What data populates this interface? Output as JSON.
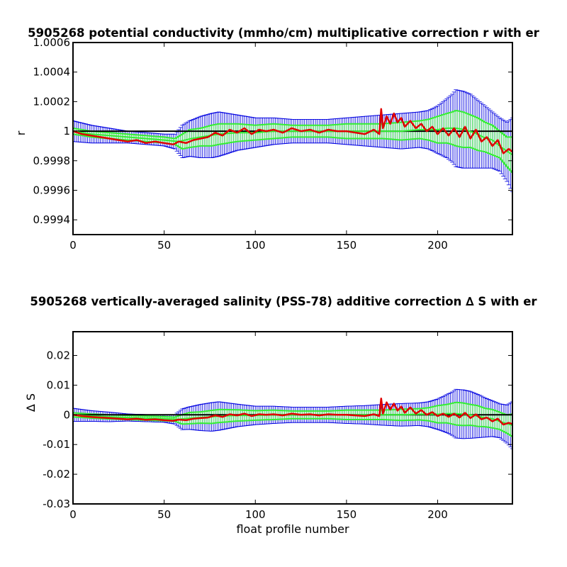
{
  "chart_data": [
    {
      "type": "line",
      "title": "5905268 potential conductivity (mmho/cm) multiplicative correction r with er",
      "xlabel": "",
      "ylabel": "r",
      "xlim": [
        0,
        241
      ],
      "ylim": [
        0.9993,
        1.0006
      ],
      "x_ticks": [
        0,
        50,
        100,
        150,
        200
      ],
      "x_tick_labels": [
        "0",
        "50",
        "100",
        "150",
        "200"
      ],
      "y_ticks": [
        0.9994,
        0.9996,
        0.9998,
        1.0,
        1.0002,
        1.0004,
        1.0006
      ],
      "y_tick_labels": [
        "0.9994",
        "0.9996",
        "0.9998",
        "1",
        "1.0002",
        "1.0004",
        "1.0006"
      ],
      "grid": false,
      "reference_line": 1.0,
      "series": [
        {
          "role": "float-correction",
          "color": "#e00000",
          "x": [
            0,
            5,
            10,
            15,
            20,
            25,
            30,
            35,
            40,
            45,
            50,
            55,
            58,
            62,
            66,
            70,
            74,
            78,
            82,
            86,
            90,
            94,
            98,
            102,
            106,
            110,
            115,
            120,
            125,
            130,
            135,
            140,
            145,
            150,
            155,
            160,
            165,
            168,
            169,
            170,
            172,
            174,
            176,
            178,
            180,
            182,
            185,
            188,
            191,
            194,
            197,
            200,
            203,
            206,
            209,
            212,
            215,
            218,
            221,
            224,
            227,
            230,
            233,
            236,
            239,
            241
          ],
          "values": [
            1.0,
            0.99998,
            0.99997,
            0.99996,
            0.99995,
            0.99994,
            0.99993,
            0.99994,
            0.99992,
            0.99993,
            0.99992,
            0.99991,
            0.99993,
            0.99992,
            0.99994,
            0.99995,
            0.99996,
            0.99999,
            0.99997,
            1.00001,
            0.99999,
            1.00002,
            0.99998,
            1.00001,
            1.0,
            1.00001,
            0.99999,
            1.00002,
            1.0,
            1.00001,
            0.99999,
            1.00001,
            1.0,
            1.0,
            0.99999,
            0.99998,
            1.00001,
            0.99998,
            1.00015,
            1.00002,
            1.0001,
            1.00005,
            1.00012,
            1.00006,
            1.00009,
            1.00003,
            1.00007,
            1.00002,
            1.00005,
            1.0,
            1.00003,
            0.99998,
            1.00002,
            0.99997,
            1.00002,
            0.99996,
            1.00003,
            0.99995,
            1.00001,
            0.99993,
            0.99996,
            0.9999,
            0.99994,
            0.99985,
            0.99988,
            0.99986
          ]
        },
        {
          "role": "mapped-estimate",
          "color": "#33ee33",
          "x": [
            0,
            10,
            20,
            30,
            40,
            50,
            58,
            65,
            75,
            80,
            90,
            100,
            110,
            120,
            130,
            140,
            150,
            160,
            170,
            180,
            190,
            200,
            205,
            210,
            215,
            220,
            225,
            230,
            235,
            241
          ],
          "values": [
            1.0,
            0.99998,
            0.99997,
            0.99996,
            0.99995,
            0.99994,
            0.99993,
            0.99995,
            0.99997,
            0.99998,
            0.99999,
            0.99999,
            1.0,
            1.0,
            1.0,
            1.0,
            1.0,
            1.0,
            1.0,
            1.0,
            1.00001,
            1.00001,
            1.00002,
            1.00002,
            1.00001,
            0.99999,
            0.99996,
            0.99994,
            0.99989,
            0.99984
          ]
        }
      ],
      "error_bars": [
        {
          "role": "blue-error",
          "color": "#0000e0",
          "x": [
            0,
            10,
            20,
            30,
            40,
            50,
            56,
            60,
            64,
            70,
            76,
            80,
            90,
            100,
            110,
            120,
            130,
            140,
            150,
            160,
            170,
            180,
            190,
            195,
            200,
            205,
            208,
            210,
            214,
            218,
            222,
            226,
            230,
            234,
            238,
            241
          ],
          "center": [
            1.0,
            0.99998,
            0.99997,
            0.99996,
            0.99995,
            0.99994,
            0.99993,
            0.99993,
            0.99995,
            0.99996,
            0.99997,
            0.99998,
            0.99999,
            0.99999,
            1.0,
            1.0,
            1.0,
            1.0,
            1.0,
            1.0,
            1.0,
            1.0,
            1.00001,
            1.00001,
            1.00001,
            1.00002,
            1.00002,
            1.00002,
            1.00001,
            1.0,
            0.99998,
            0.99996,
            0.99994,
            0.99991,
            0.99986,
            0.99984
          ],
          "half_width": [
            7e-05,
            6e-05,
            5e-05,
            4e-05,
            4e-05,
            4e-05,
            5e-05,
            0.00011,
            0.00012,
            0.00014,
            0.00015,
            0.00015,
            0.00012,
            0.0001,
            9e-05,
            8e-05,
            8e-05,
            8e-05,
            9e-05,
            0.0001,
            0.00011,
            0.00012,
            0.00012,
            0.00013,
            0.00016,
            0.0002,
            0.00023,
            0.00026,
            0.00026,
            0.00025,
            0.00023,
            0.00021,
            0.00019,
            0.00018,
            0.0002,
            0.00025
          ]
        },
        {
          "role": "green-error",
          "color": "#33ee33",
          "x": [
            0,
            10,
            20,
            30,
            40,
            50,
            56,
            60,
            64,
            70,
            76,
            80,
            90,
            100,
            110,
            120,
            130,
            140,
            150,
            160,
            170,
            180,
            190,
            195,
            200,
            205,
            208,
            210,
            214,
            218,
            222,
            226,
            230,
            234,
            238,
            241
          ],
          "center": [
            1.0,
            0.99998,
            0.99997,
            0.99996,
            0.99995,
            0.99994,
            0.99993,
            0.99993,
            0.99995,
            0.99996,
            0.99997,
            0.99998,
            0.99999,
            0.99999,
            1.0,
            1.0,
            1.0,
            1.0,
            1.0,
            1.0,
            1.0,
            1.0,
            1.00001,
            1.00001,
            1.00001,
            1.00002,
            1.00002,
            1.00002,
            1.00001,
            1.0,
            0.99998,
            0.99996,
            0.99994,
            0.99991,
            0.99986,
            0.99984
          ],
          "half_width": [
            2e-05,
            2e-05,
            2e-05,
            2e-05,
            2e-05,
            2e-05,
            2e-05,
            5e-05,
            6e-05,
            6e-05,
            7e-05,
            7e-05,
            6e-05,
            5e-05,
            5e-05,
            4e-05,
            4e-05,
            4e-05,
            5e-05,
            5e-05,
            5e-05,
            6e-05,
            6e-05,
            7e-05,
            9e-05,
            0.0001,
            0.00011,
            0.00012,
            0.00012,
            0.00011,
            0.00011,
            0.0001,
            0.0001,
            9e-05,
            0.0001,
            0.00012
          ]
        }
      ]
    },
    {
      "type": "line",
      "title": "5905268 vertically-averaged salinity (PSS-78) additive correction ∆ S with er",
      "xlabel": "float profile number",
      "ylabel": "∆ S",
      "xlim": [
        0,
        241
      ],
      "ylim": [
        -0.03,
        0.028
      ],
      "x_ticks": [
        0,
        50,
        100,
        150,
        200
      ],
      "x_tick_labels": [
        "0",
        "50",
        "100",
        "150",
        "200"
      ],
      "y_ticks": [
        -0.03,
        -0.02,
        -0.01,
        0,
        0.01,
        0.02
      ],
      "y_tick_labels": [
        "-0.03",
        "-0.02",
        "-0.01",
        "0",
        "0.01",
        "0.02"
      ],
      "grid": false,
      "reference_line": 0,
      "series": [
        {
          "role": "float-correction",
          "color": "#e00000",
          "x": [
            0,
            5,
            10,
            15,
            20,
            25,
            30,
            35,
            40,
            45,
            50,
            55,
            58,
            62,
            66,
            70,
            74,
            78,
            82,
            86,
            90,
            94,
            98,
            102,
            106,
            110,
            115,
            120,
            125,
            130,
            135,
            140,
            145,
            150,
            155,
            160,
            165,
            168,
            169,
            170,
            172,
            174,
            176,
            178,
            180,
            182,
            185,
            188,
            191,
            194,
            197,
            200,
            203,
            206,
            209,
            212,
            215,
            218,
            221,
            224,
            227,
            230,
            233,
            236,
            239,
            241
          ],
          "values": [
            0.0,
            -0.0004,
            -0.0007,
            -0.0009,
            -0.0011,
            -0.0013,
            -0.0015,
            -0.0013,
            -0.0017,
            -0.0015,
            -0.0018,
            -0.002,
            -0.0016,
            -0.0018,
            -0.0013,
            -0.0011,
            -0.0009,
            -0.0002,
            -0.0007,
            0.0002,
            -0.0002,
            0.0004,
            -0.0004,
            0.0002,
            0.0,
            0.0002,
            -0.0002,
            0.0004,
            0.0,
            0.0002,
            -0.0002,
            0.0002,
            0.0,
            0.0,
            -0.0002,
            -0.0004,
            0.0002,
            -0.0004,
            0.0055,
            0.0004,
            0.0042,
            0.0018,
            0.0038,
            0.0014,
            0.0028,
            0.0007,
            0.0025,
            0.0004,
            0.0016,
            0.0,
            0.0009,
            -0.0004,
            0.0004,
            -0.0007,
            0.0004,
            -0.0009,
            0.0007,
            -0.0011,
            0.0002,
            -0.0015,
            -0.0009,
            -0.0022,
            -0.0013,
            -0.0033,
            -0.0027,
            -0.0031
          ]
        },
        {
          "role": "mapped-estimate",
          "color": "#33ee33",
          "x": [
            0,
            10,
            20,
            30,
            40,
            50,
            58,
            65,
            75,
            80,
            90,
            100,
            110,
            120,
            130,
            140,
            150,
            160,
            170,
            180,
            190,
            200,
            205,
            210,
            215,
            220,
            225,
            230,
            235,
            241
          ],
          "values": [
            0.0,
            -0.0004,
            -0.0007,
            -0.0009,
            -0.0011,
            -0.0013,
            -0.0015,
            -0.0011,
            -0.0007,
            -0.0004,
            -0.0002,
            -0.0002,
            0.0,
            0.0,
            0.0,
            0.0,
            0.0,
            0.0,
            0.0,
            0.0,
            0.0002,
            0.0002,
            0.0004,
            0.0004,
            0.0002,
            -0.0002,
            -0.0009,
            -0.0013,
            -0.0024,
            -0.0035
          ]
        }
      ],
      "error_bars": [
        {
          "role": "blue-error",
          "color": "#0000e0",
          "x": [
            0,
            10,
            20,
            30,
            40,
            50,
            56,
            60,
            64,
            70,
            76,
            80,
            90,
            100,
            110,
            120,
            130,
            140,
            150,
            160,
            170,
            180,
            190,
            195,
            200,
            205,
            208,
            210,
            214,
            218,
            222,
            226,
            230,
            234,
            238,
            241
          ],
          "center": [
            0.0,
            -0.0004,
            -0.0007,
            -0.0009,
            -0.0011,
            -0.0013,
            -0.0015,
            -0.0015,
            -0.0011,
            -0.0009,
            -0.0007,
            -0.0004,
            -0.0002,
            -0.0002,
            0.0,
            0.0,
            0.0,
            0.0,
            0.0,
            0.0,
            0.0,
            0.0,
            0.0002,
            0.0002,
            0.0002,
            0.0004,
            0.0004,
            0.0004,
            0.0002,
            0.0,
            -0.0004,
            -0.0009,
            -0.0013,
            -0.002,
            -0.0031,
            -0.0035
          ],
          "half_width": [
            0.0022,
            0.0018,
            0.0016,
            0.0012,
            0.0012,
            0.0012,
            0.0016,
            0.0035,
            0.0038,
            0.0044,
            0.0048,
            0.0048,
            0.0038,
            0.0031,
            0.0029,
            0.0026,
            0.0026,
            0.0026,
            0.0029,
            0.0031,
            0.0035,
            0.0038,
            0.0038,
            0.0042,
            0.0051,
            0.0064,
            0.0073,
            0.0082,
            0.0082,
            0.0079,
            0.0073,
            0.0066,
            0.006,
            0.0057,
            0.0064,
            0.0079
          ]
        },
        {
          "role": "green-error",
          "color": "#33ee33",
          "x": [
            0,
            10,
            20,
            30,
            40,
            50,
            56,
            60,
            64,
            70,
            76,
            80,
            90,
            100,
            110,
            120,
            130,
            140,
            150,
            160,
            170,
            180,
            190,
            195,
            200,
            205,
            208,
            210,
            214,
            218,
            222,
            226,
            230,
            234,
            238,
            241
          ],
          "center": [
            0.0,
            -0.0004,
            -0.0007,
            -0.0009,
            -0.0011,
            -0.0013,
            -0.0015,
            -0.0015,
            -0.0011,
            -0.0009,
            -0.0007,
            -0.0004,
            -0.0002,
            -0.0002,
            0.0,
            0.0,
            0.0,
            0.0,
            0.0,
            0.0,
            0.0,
            0.0,
            0.0002,
            0.0002,
            0.0002,
            0.0004,
            0.0004,
            0.0004,
            0.0002,
            0.0,
            -0.0004,
            -0.0009,
            -0.0013,
            -0.002,
            -0.0031,
            -0.0035
          ],
          "half_width": [
            0.0007,
            0.0007,
            0.0007,
            0.0007,
            0.0007,
            0.0007,
            0.0007,
            0.0016,
            0.0019,
            0.0019,
            0.0022,
            0.0022,
            0.0019,
            0.0016,
            0.0016,
            0.0013,
            0.0013,
            0.0013,
            0.0016,
            0.0016,
            0.0016,
            0.0019,
            0.0019,
            0.0022,
            0.0029,
            0.0031,
            0.0035,
            0.0038,
            0.0038,
            0.0035,
            0.0035,
            0.0031,
            0.0031,
            0.0029,
            0.0031,
            0.0038
          ]
        }
      ]
    }
  ]
}
